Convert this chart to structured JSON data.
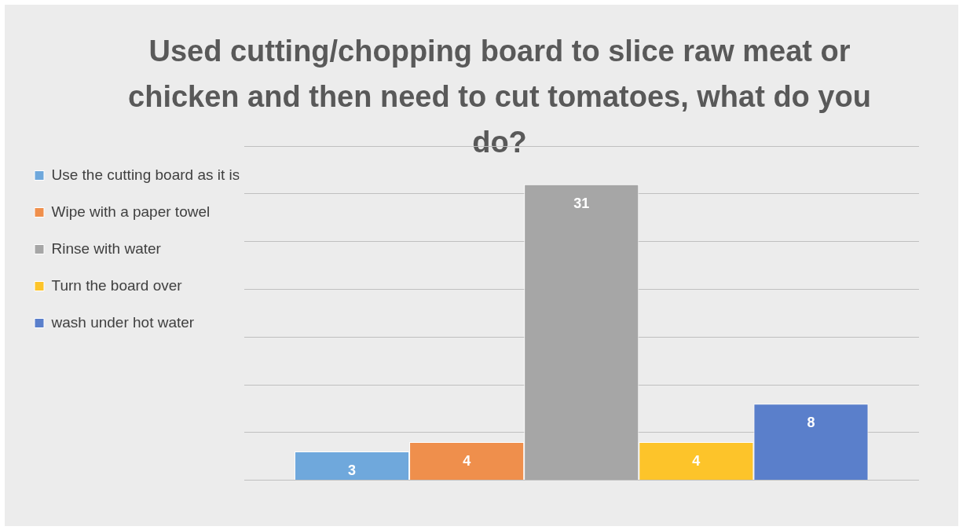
{
  "chart_data": {
    "type": "bar",
    "title": "Used cutting/chopping board to slice raw meat or chicken and then need to cut tomatoes, what do you do?",
    "categories": [
      null
    ],
    "series": [
      {
        "name": "Use the cutting board as it is",
        "color": "#6fa8dc",
        "values": [
          3
        ]
      },
      {
        "name": "Wipe with a paper towel",
        "color": "#ef8f4c",
        "values": [
          4
        ]
      },
      {
        "name": "Rinse with water",
        "color": "#a6a6a6",
        "values": [
          31
        ]
      },
      {
        "name": "Turn the board over",
        "color": "#fdc42a",
        "values": [
          4
        ]
      },
      {
        "name": "wash under hot water",
        "color": "#5a7fcb",
        "values": [
          8
        ]
      }
    ],
    "ylim": [
      0,
      35
    ],
    "yticks": [
      {
        "value": 0,
        "label": null
      },
      {
        "value": 5,
        "label": null
      },
      {
        "value": 10,
        "label": null
      },
      {
        "value": 15,
        "label": null
      },
      {
        "value": 20,
        "label": null
      },
      {
        "value": 25,
        "label": null
      },
      {
        "value": 30,
        "label": null
      },
      {
        "value": 35,
        "label": null
      }
    ],
    "grid": "y",
    "legend": "top left",
    "data_labels": true
  }
}
